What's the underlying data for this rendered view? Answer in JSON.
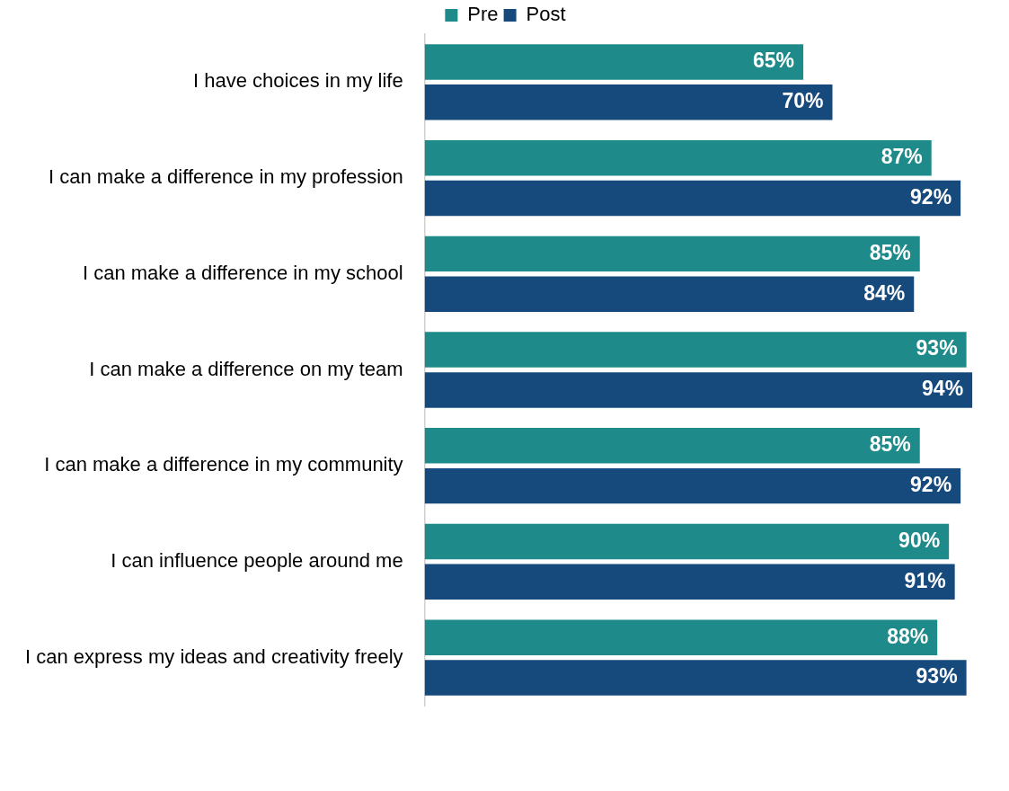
{
  "chart_data": {
    "type": "bar",
    "orientation": "horizontal",
    "legend": "top",
    "data_labels": true,
    "grid": false,
    "categories": [
      "I have choices in my life",
      "I can make a difference in my profession",
      "I can make a difference in my school",
      "I can make a difference on my team",
      "I can make a difference in my community",
      "I can influence people around me",
      "I can express my ideas and creativity freely"
    ],
    "series": [
      {
        "name": "Pre",
        "color": "#1f8a8a",
        "values": [
          65,
          87,
          85,
          93,
          85,
          90,
          88
        ],
        "value_labels": [
          "65%",
          "87%",
          "85%",
          "93%",
          "85%",
          "90%",
          "88%"
        ]
      },
      {
        "name": "Post",
        "color": "#174a7c",
        "values": [
          70,
          92,
          84,
          94,
          92,
          91,
          93
        ],
        "value_labels": [
          "70%",
          "92%",
          "84%",
          "94%",
          "92%",
          "91%",
          "93%"
        ]
      }
    ]
  }
}
